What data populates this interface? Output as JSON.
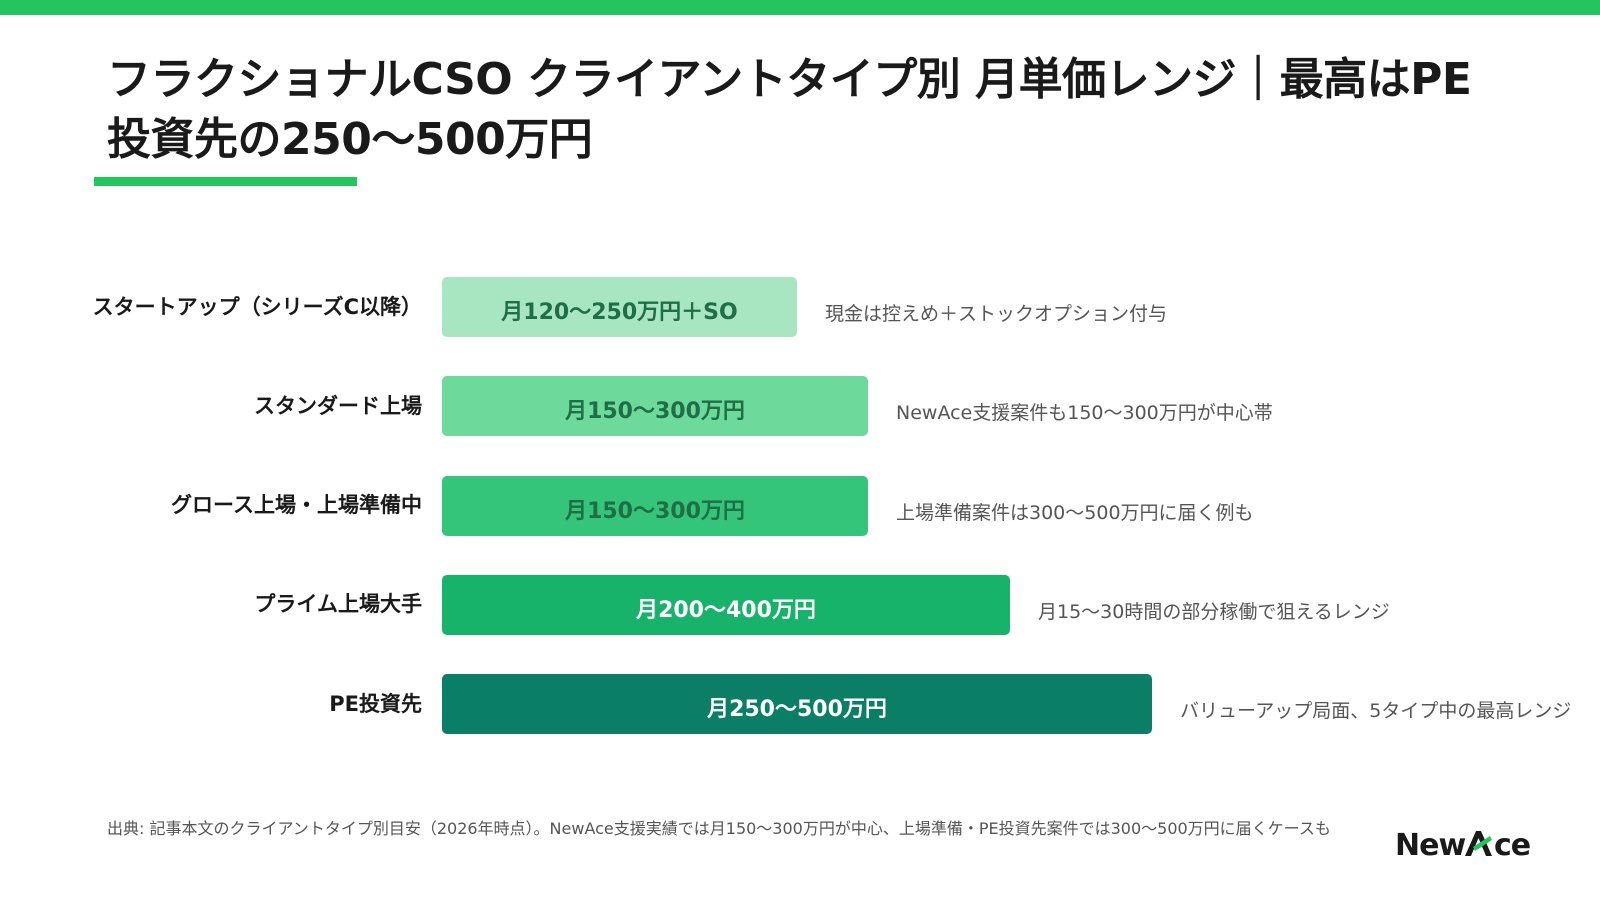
{
  "header": {
    "title": "フラクショナルCSO クライアントタイプ別 月単価レンジ｜最高はPE投資先の250〜500万円"
  },
  "colors": {
    "accent": "#22c55e",
    "bar_colors": [
      "#a8e6c1",
      "#6dd99a",
      "#34c47a",
      "#18b36a",
      "#0a7f66"
    ],
    "bar_text_colors": [
      "#1f6e45",
      "#1f6e45",
      "#1f6e45",
      "#ffffff",
      "#ffffff"
    ]
  },
  "chart_data": {
    "type": "bar",
    "orientation": "horizontal",
    "title": "フラクショナルCSO クライアントタイプ別 月単価レンジ｜最高はPE投資先の250〜500万円",
    "xlabel": "",
    "ylabel": "",
    "unit": "万円",
    "grid": false,
    "categories": [
      "スタートアップ（シリーズC以降）",
      "スタンダード上場",
      "グロース上場・上場準備中",
      "プライム上場大手",
      "PE投資先"
    ],
    "values": [
      250,
      300,
      300,
      400,
      500
    ],
    "ranges": [
      [
        120,
        250
      ],
      [
        150,
        300
      ],
      [
        150,
        300
      ],
      [
        200,
        400
      ],
      [
        250,
        500
      ]
    ],
    "data_labels": [
      "月120〜250万円＋SO",
      "月150〜300万円",
      "月150〜300万円",
      "月200〜400万円",
      "月250〜500万円"
    ],
    "notes": [
      "現金は控えめ＋ストックオプション付与",
      "NewAce支援案件も150〜300万円が中心帯",
      "上場準備案件は300〜500万円に届く例も",
      "月15〜30時間の部分稼働で狙えるレンジ",
      "バリューアップ局面、5タイプ中の最高レンジ"
    ]
  },
  "footer": {
    "source": "出典: 記事本文のクライアントタイプ別目安（2026年時点）。NewAce支援実績では月150〜300万円が中心、上場準備・PE投資先案件では300〜500万円に届くケースも"
  },
  "logo": {
    "text_before": "New",
    "text_after": "ce",
    "icon": "newace-a-logo-icon"
  }
}
